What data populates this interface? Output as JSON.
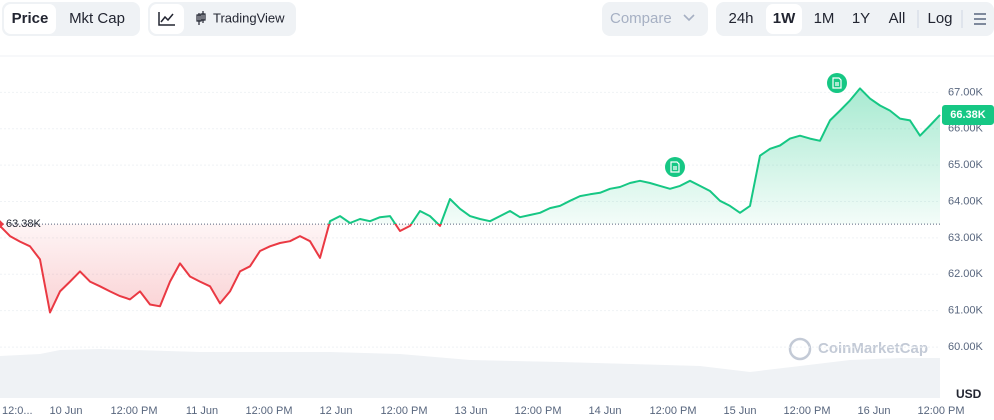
{
  "ui": {
    "tabs": [
      "Price",
      "Mkt Cap"
    ],
    "view": "TradingView",
    "compare": "Compare",
    "ranges": [
      "24h",
      "1W",
      "1M",
      "1Y",
      "All"
    ],
    "log": "Log",
    "watermark": "CoinMarketCap",
    "currency": "USD"
  },
  "chart_data": {
    "type": "line",
    "values": [
      63.33,
      63.05,
      62.9,
      62.77,
      62.41,
      60.95,
      61.53,
      61.8,
      62.08,
      61.8,
      61.67,
      61.53,
      61.4,
      61.31,
      61.53,
      61.17,
      61.12,
      61.8,
      62.3,
      61.94,
      61.8,
      61.67,
      61.2,
      61.53,
      62.08,
      62.22,
      62.64,
      62.77,
      62.86,
      62.91,
      63.05,
      62.91,
      62.45,
      63.46,
      63.6,
      63.41,
      63.52,
      63.46,
      63.57,
      63.6,
      63.19,
      63.33,
      63.74,
      63.6,
      63.33,
      64.07,
      63.8,
      63.6,
      63.52,
      63.46,
      63.6,
      63.74,
      63.57,
      63.63,
      63.69,
      63.82,
      63.88,
      64.02,
      64.15,
      64.2,
      64.24,
      64.35,
      64.4,
      64.51,
      64.57,
      64.51,
      64.43,
      64.35,
      64.43,
      64.57,
      64.43,
      64.29,
      64.02,
      63.88,
      63.69,
      63.88,
      65.26,
      65.45,
      65.54,
      65.73,
      65.81,
      65.73,
      65.67,
      66.23,
      66.5,
      66.78,
      67.11,
      66.83,
      66.64,
      66.5,
      66.28,
      66.23,
      65.81,
      66.09,
      66.38
    ],
    "up_color": "#16c784",
    "down_color": "#ea3943",
    "baseline": {
      "value": 63.38,
      "label": "63.38K"
    },
    "current_price": {
      "value": 66.38,
      "label": "66.38K"
    },
    "xlim": [
      0,
      94
    ],
    "xticks": [
      {
        "value": -0.1,
        "label": "12:0..."
      },
      {
        "value": 6.6,
        "label": "10 Jun"
      },
      {
        "value": 13.4,
        "label": "12:00 PM"
      },
      {
        "value": 20.2,
        "label": "11 Jun"
      },
      {
        "value": 26.9,
        "label": "12:00 PM"
      },
      {
        "value": 33.6,
        "label": "12 Jun"
      },
      {
        "value": 40.4,
        "label": "12:00 PM"
      },
      {
        "value": 47.1,
        "label": "13 Jun"
      },
      {
        "value": 53.8,
        "label": "12:00 PM"
      },
      {
        "value": 60.5,
        "label": "14 Jun"
      },
      {
        "value": 67.3,
        "label": "12:00 PM"
      },
      {
        "value": 74.0,
        "label": "15 Jun"
      },
      {
        "value": 80.7,
        "label": "12:00 PM"
      },
      {
        "value": 87.4,
        "label": "16 Jun"
      },
      {
        "value": 94.1,
        "label": "12:00 PM"
      }
    ],
    "ylim": [
      58.6,
      68
    ],
    "yticks": [
      {
        "value": 60,
        "label": "60.00K"
      },
      {
        "value": 61,
        "label": "61.00K"
      },
      {
        "value": 62,
        "label": "62.00K"
      },
      {
        "value": 63,
        "label": "63.00K"
      },
      {
        "value": 64,
        "label": "64.00K"
      },
      {
        "value": 65,
        "label": "65.00K"
      },
      {
        "value": 66,
        "label": "66.00K"
      },
      {
        "value": 67,
        "label": "67.00K"
      }
    ],
    "grid": true
  }
}
